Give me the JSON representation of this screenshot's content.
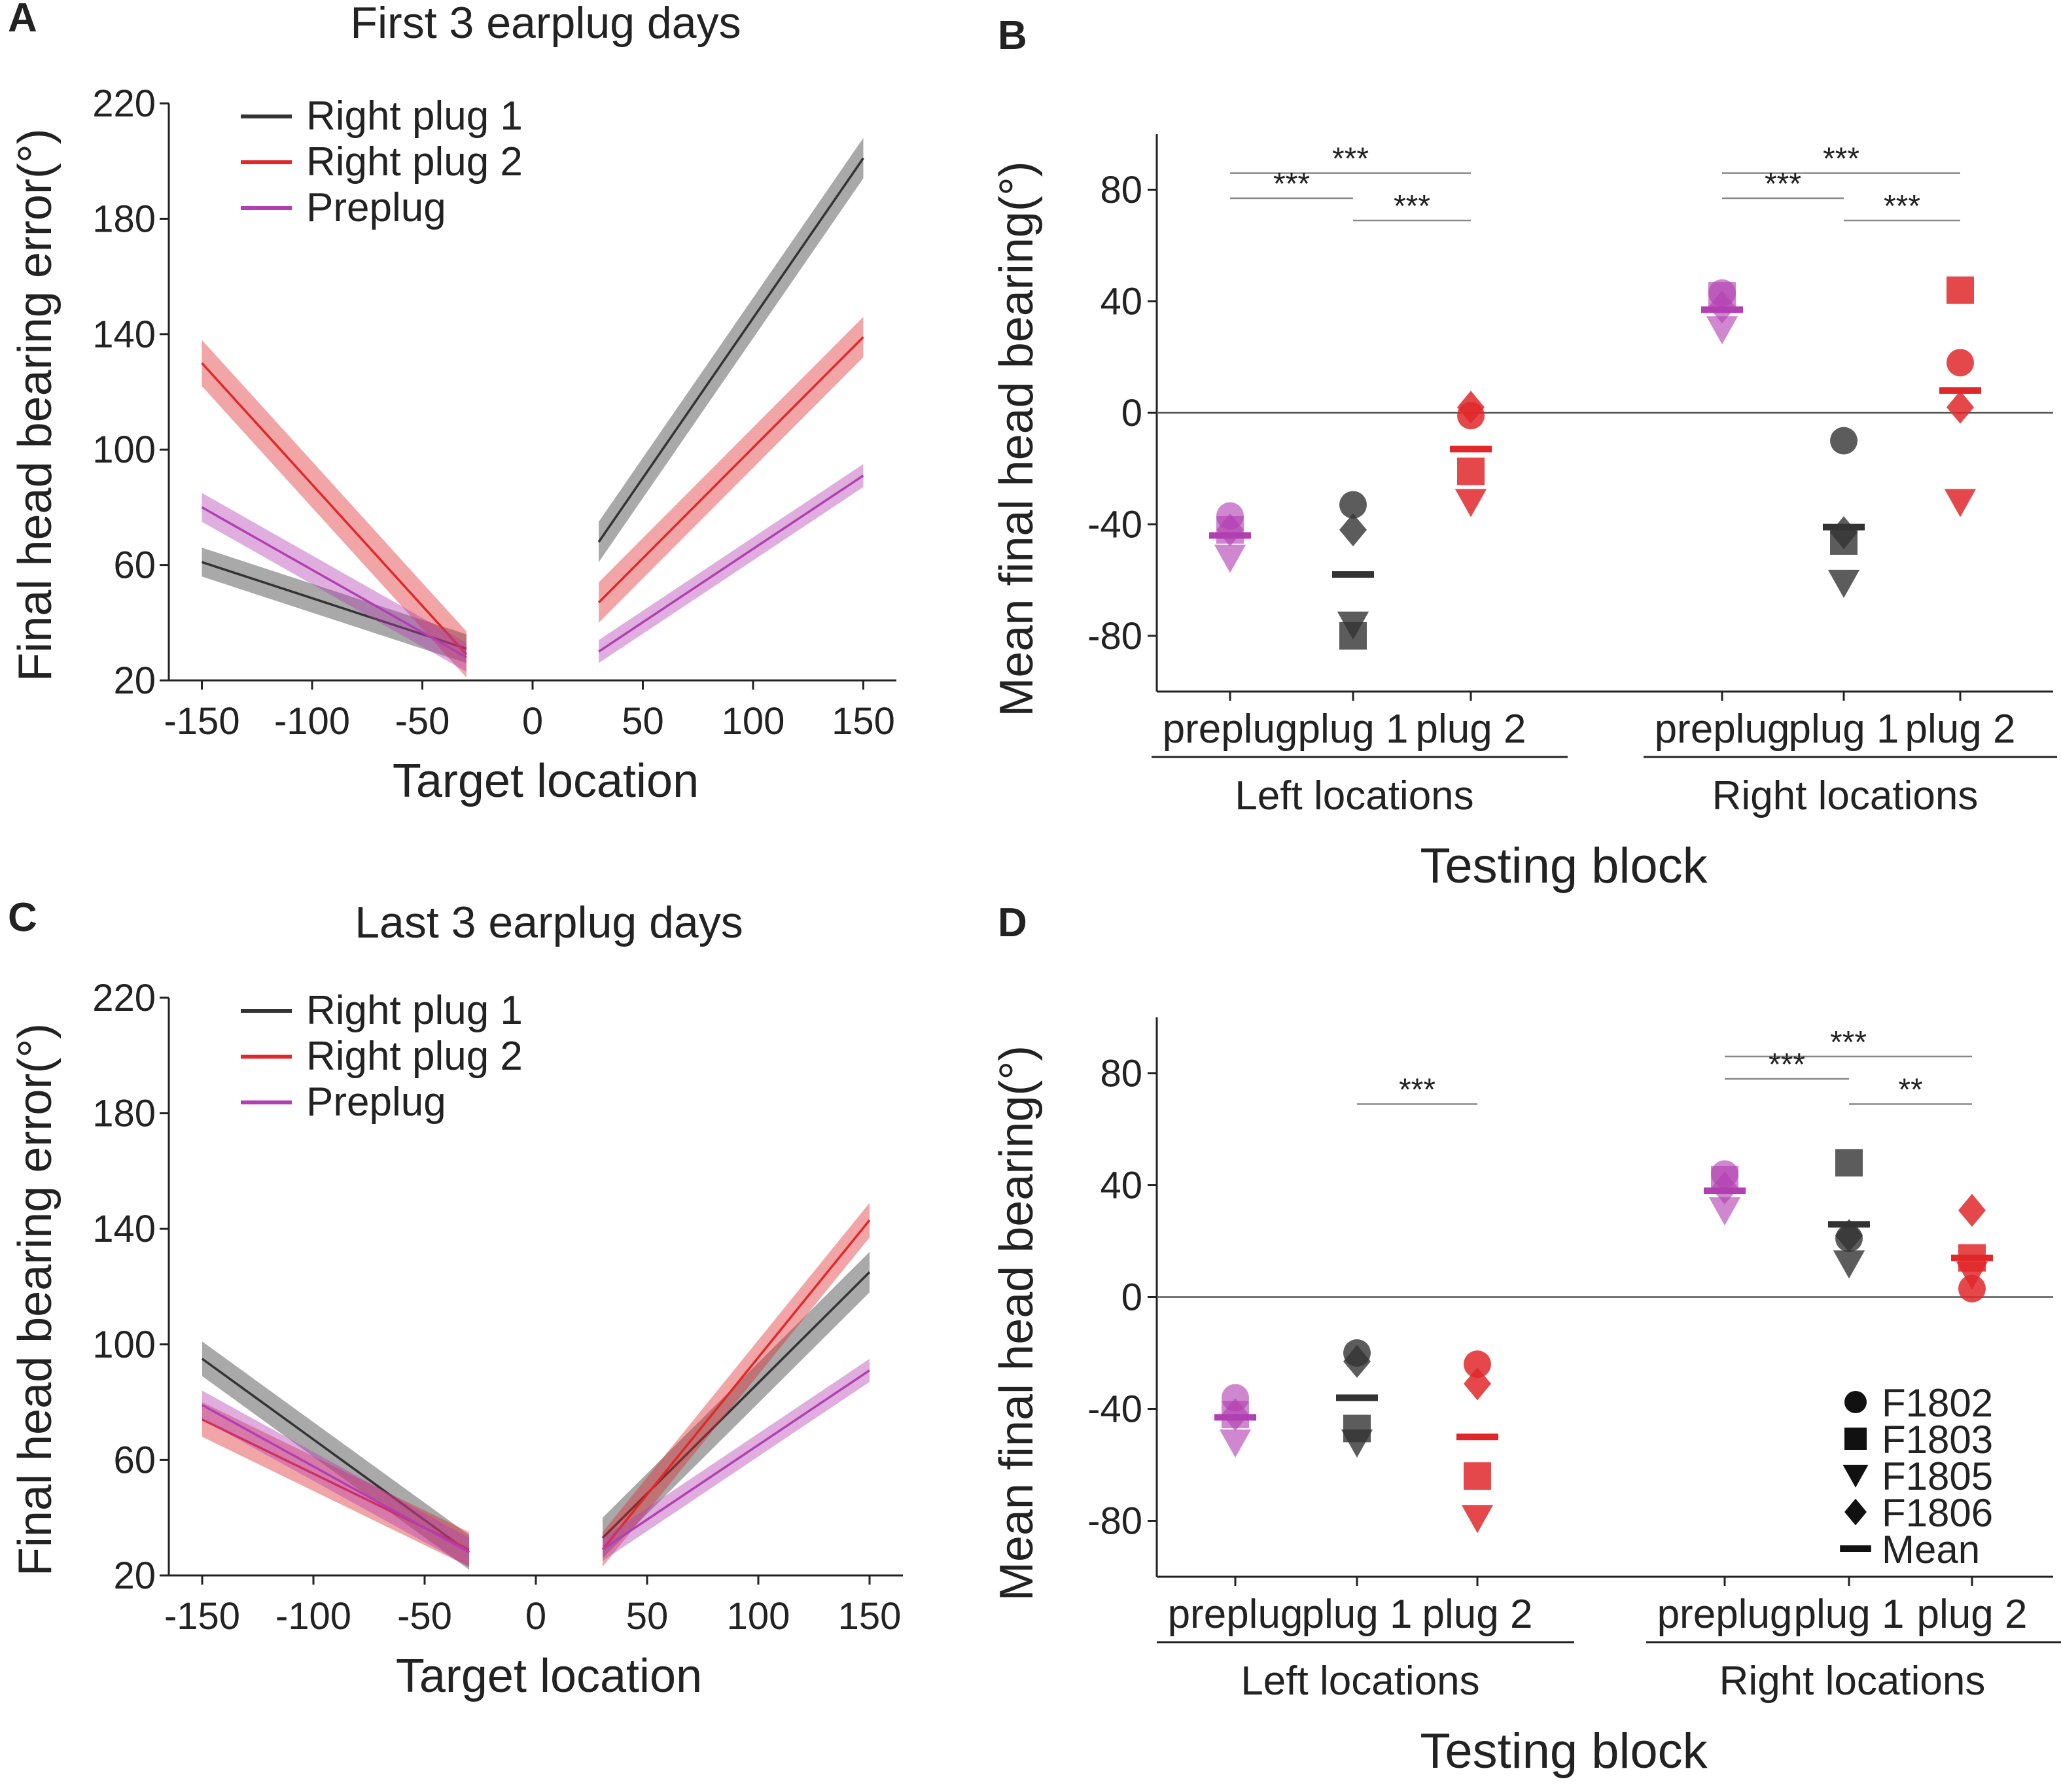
{
  "colors": {
    "plug1": "#333333",
    "plug2": "#e0282b",
    "preplug": "#b23fb2",
    "axis": "#222222",
    "zero_line": "#555555",
    "bracket": "#888888",
    "background": "#ffffff"
  },
  "chart_data": [
    {
      "id": "A",
      "type": "line",
      "panel_label": "A",
      "title": "First 3 earplug days",
      "xlabel": "Target location",
      "ylabel": "Final head bearing error(°)",
      "xlim": [
        -165,
        165
      ],
      "ylim": [
        20,
        220
      ],
      "xticks": [
        -150,
        -100,
        -50,
        0,
        50,
        100,
        150
      ],
      "yticks": [
        20,
        60,
        100,
        140,
        180,
        220
      ],
      "legend": {
        "position": "top-left",
        "entries": [
          "Right plug 1",
          "Right plug 2",
          "Preplug"
        ]
      },
      "series": [
        {
          "name": "Right plug 1",
          "color_key": "plug1",
          "left": {
            "x": [
              -150,
              -30
            ],
            "y": [
              61,
              31
            ],
            "band": 5
          },
          "right": {
            "x": [
              30,
              150
            ],
            "y": [
              68,
              201
            ],
            "band": 7
          }
        },
        {
          "name": "Right plug 2",
          "color_key": "plug2",
          "left": {
            "x": [
              -150,
              -30
            ],
            "y": [
              130,
              29
            ],
            "band": 8
          },
          "right": {
            "x": [
              30,
              150
            ],
            "y": [
              47,
              139
            ],
            "band": 7
          }
        },
        {
          "name": "Preplug",
          "color_key": "preplug",
          "left": {
            "x": [
              -150,
              -30
            ],
            "y": [
              80,
              28
            ],
            "band": 5
          },
          "right": {
            "x": [
              30,
              150
            ],
            "y": [
              30,
              91
            ],
            "band": 4
          }
        }
      ]
    },
    {
      "id": "B",
      "type": "scatter",
      "panel_label": "B",
      "ylabel": "Mean final head bearing(°)",
      "xlabel": "Testing block",
      "ylim": [
        -100,
        100
      ],
      "yticks": [
        -80,
        -40,
        0,
        40,
        80
      ],
      "groups": [
        {
          "name": "Left locations",
          "categories": [
            "preplug",
            "plug 1",
            "plug 2"
          ]
        },
        {
          "name": "Right locations",
          "categories": [
            "preplug",
            "plug 1",
            "plug 2"
          ]
        }
      ],
      "points": [
        {
          "group": 0,
          "cat": 0,
          "color_key": "preplug",
          "values": {
            "F1802": -37,
            "F1803": -42,
            "F1805": -52,
            "F1806": -42
          },
          "mean": -44
        },
        {
          "group": 0,
          "cat": 1,
          "color_key": "plug1",
          "values": {
            "F1802": -33,
            "F1803": -80,
            "F1805": -76,
            "F1806": -42
          },
          "mean": -58
        },
        {
          "group": 0,
          "cat": 2,
          "color_key": "plug2",
          "values": {
            "F1802": -1,
            "F1803": -21,
            "F1805": -32,
            "F1806": 2
          },
          "mean": -13
        },
        {
          "group": 1,
          "cat": 0,
          "color_key": "preplug",
          "values": {
            "F1802": 43,
            "F1803": 42,
            "F1805": 30,
            "F1806": 38
          },
          "mean": 37
        },
        {
          "group": 1,
          "cat": 1,
          "color_key": "plug1",
          "values": {
            "F1802": -10,
            "F1803": -46,
            "F1805": -61,
            "F1806": -43
          },
          "mean": -41
        },
        {
          "group": 1,
          "cat": 2,
          "color_key": "plug2",
          "values": {
            "F1802": 18,
            "F1803": 44,
            "F1805": -32,
            "F1806": 2
          },
          "mean": 8
        }
      ],
      "significance": [
        {
          "group": 0,
          "from": 0,
          "to": 2,
          "label": "***",
          "level": 2
        },
        {
          "group": 0,
          "from": 0,
          "to": 1,
          "label": "***",
          "level": 1
        },
        {
          "group": 0,
          "from": 1,
          "to": 2,
          "label": "***",
          "level": 0
        },
        {
          "group": 1,
          "from": 0,
          "to": 2,
          "label": "***",
          "level": 2
        },
        {
          "group": 1,
          "from": 0,
          "to": 1,
          "label": "***",
          "level": 1
        },
        {
          "group": 1,
          "from": 1,
          "to": 2,
          "label": "***",
          "level": 0
        }
      ]
    },
    {
      "id": "C",
      "type": "line",
      "panel_label": "C",
      "title": "Last 3 earplug days",
      "xlabel": "Target location",
      "ylabel": "Final head bearing error(°)",
      "xlim": [
        -165,
        165
      ],
      "ylim": [
        20,
        220
      ],
      "xticks": [
        -150,
        -100,
        -50,
        0,
        50,
        100,
        150
      ],
      "yticks": [
        20,
        60,
        100,
        140,
        180,
        220
      ],
      "legend": {
        "position": "top-left",
        "entries": [
          "Right plug 1",
          "Right plug 2",
          "Preplug"
        ]
      },
      "series": [
        {
          "name": "Right plug 1",
          "color_key": "plug1",
          "left": {
            "x": [
              -150,
              -30
            ],
            "y": [
              95,
              28
            ],
            "band": 6
          },
          "right": {
            "x": [
              30,
              150
            ],
            "y": [
              33,
              125
            ],
            "band": 7
          }
        },
        {
          "name": "Right plug 2",
          "color_key": "plug2",
          "left": {
            "x": [
              -150,
              -30
            ],
            "y": [
              74,
              29
            ],
            "band": 6
          },
          "right": {
            "x": [
              30,
              150
            ],
            "y": [
              29,
              143
            ],
            "band": 6
          }
        },
        {
          "name": "Preplug",
          "color_key": "preplug",
          "left": {
            "x": [
              -150,
              -30
            ],
            "y": [
              79,
              28
            ],
            "band": 5
          },
          "right": {
            "x": [
              30,
              150
            ],
            "y": [
              29,
              91
            ],
            "band": 4
          }
        }
      ]
    },
    {
      "id": "D",
      "type": "scatter",
      "panel_label": "D",
      "ylabel": "Mean final head bearing(°)",
      "xlabel": "Testing block",
      "ylim": [
        -100,
        100
      ],
      "yticks": [
        -80,
        -40,
        0,
        40,
        80
      ],
      "groups": [
        {
          "name": "Left locations",
          "categories": [
            "preplug",
            "plug 1",
            "plug 2"
          ]
        },
        {
          "name": "Right locations",
          "categories": [
            "preplug",
            "plug 1",
            "plug 2"
          ]
        }
      ],
      "points": [
        {
          "group": 0,
          "cat": 0,
          "color_key": "preplug",
          "values": {
            "F1802": -36,
            "F1803": -42,
            "F1805": -52,
            "F1806": -42
          },
          "mean": -43
        },
        {
          "group": 0,
          "cat": 1,
          "color_key": "plug1",
          "values": {
            "F1802": -20,
            "F1803": -47,
            "F1805": -52,
            "F1806": -23
          },
          "mean": -36
        },
        {
          "group": 0,
          "cat": 2,
          "color_key": "plug2",
          "values": {
            "F1802": -24,
            "F1803": -64,
            "F1805": -79,
            "F1806": -31
          },
          "mean": -50
        },
        {
          "group": 1,
          "cat": 0,
          "color_key": "preplug",
          "values": {
            "F1802": 44,
            "F1803": 42,
            "F1805": 31,
            "F1806": 39
          },
          "mean": 38
        },
        {
          "group": 1,
          "cat": 1,
          "color_key": "plug1",
          "values": {
            "F1802": 21,
            "F1803": 48,
            "F1805": 12,
            "F1806": 22
          },
          "mean": 26
        },
        {
          "group": 1,
          "cat": 2,
          "color_key": "plug2",
          "values": {
            "F1802": 3,
            "F1803": 14,
            "F1805": 8,
            "F1806": 31
          },
          "mean": 14
        }
      ],
      "significance": [
        {
          "group": 0,
          "from": 1,
          "to": 2,
          "label": "***",
          "level": 0
        },
        {
          "group": 1,
          "from": 0,
          "to": 2,
          "label": "***",
          "level": 2
        },
        {
          "group": 1,
          "from": 0,
          "to": 1,
          "label": "***",
          "level": 1
        },
        {
          "group": 1,
          "from": 1,
          "to": 2,
          "label": "**",
          "level": 0
        }
      ],
      "legend": {
        "position": "bottom-right",
        "entries": [
          {
            "label": "F1802",
            "marker": "circle"
          },
          {
            "label": "F1803",
            "marker": "square"
          },
          {
            "label": "F1805",
            "marker": "triangle-down"
          },
          {
            "label": "F1806",
            "marker": "diamond"
          },
          {
            "label": "Mean",
            "marker": "dash"
          }
        ]
      }
    }
  ]
}
